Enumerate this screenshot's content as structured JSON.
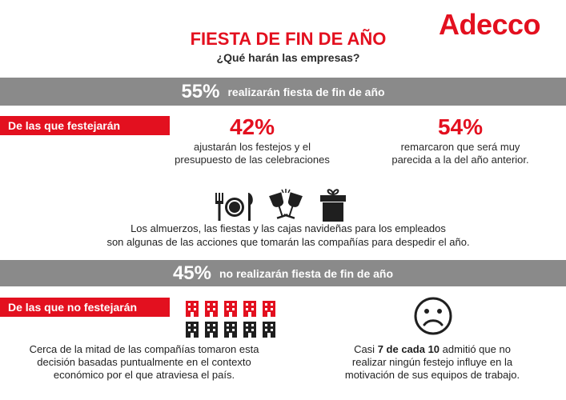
{
  "brand": {
    "logo_text": "Adecco",
    "color": "#e3101f"
  },
  "header": {
    "title": "FIESTA DE FIN DE AÑO",
    "subtitle": "¿Qué harán las empresas?"
  },
  "section_yes": {
    "percent": "55%",
    "text": "realizarán fiesta de fin de año",
    "label": "De las que festejarán",
    "stats": [
      {
        "percent": "42%",
        "lines": [
          "ajustarán los festejos y el",
          "presupuesto de las celebraciones"
        ]
      },
      {
        "percent": "54%",
        "lines": [
          "remarcaron que será muy",
          "parecida a la del año anterior."
        ]
      }
    ],
    "icons": [
      "dining-icon",
      "wine-glasses-icon",
      "gift-box-icon"
    ],
    "description_lines": [
      "Los almuerzos, las fiestas y las cajas navideñas para los empleados",
      "son algunas de las acciones que tomarán las compañías para despedir el año."
    ]
  },
  "section_no": {
    "percent": "45%",
    "text": "no realizarán fiesta de fin de año",
    "label": "De las que no festejarán",
    "left_lines": [
      "Cerca de la mitad de las compañías tomaron esta",
      "decisión basadas puntualmente en el contexto",
      "económico por el que atraviesa el país."
    ],
    "right": {
      "line1_prefix": "Casi",
      "line1_bold": "7 de cada 10",
      "line1_suffix": "admitió que no",
      "line2": "realizar ningún festejo influye en la",
      "line3": "motivación de sus equipos de trabajo."
    },
    "icons": [
      "buildings-icon",
      "sad-face-icon"
    ]
  },
  "colors": {
    "accent_red": "#e3101f",
    "bar_grey": "#8a8a8a",
    "icon_dark": "#1f1f1f"
  }
}
